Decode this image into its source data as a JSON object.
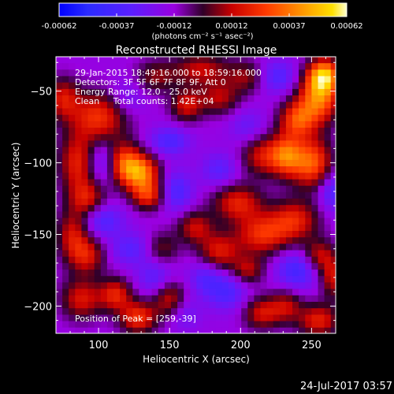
{
  "chart_data": {
    "type": "heatmap",
    "title": "Reconstructed RHESSI Image",
    "xlabel": "Heliocentric X (arcsec)",
    "ylabel": "Heliocentric Y (arcsec)",
    "xlim": [
      70,
      267
    ],
    "ylim": [
      -219,
      -26
    ],
    "xticks": [
      100,
      150,
      200,
      250
    ],
    "yticks": [
      -50,
      -100,
      -150,
      -200
    ],
    "colorbar": {
      "min": -0.00062,
      "max": 0.00062,
      "ticks": [
        "-0.00062",
        "-0.00037",
        "-0.00012",
        "0.00012",
        "0.00037",
        "0.00062"
      ],
      "unit_label": "(photons cm⁻² s⁻¹ asec⁻²)"
    },
    "annotations": [
      "29-Jan-2015 18:49:16.000 to 18:59:16.000",
      "Detectors: 3F 5F 6F 7F 8F 9F, Att 0",
      "Energy Range: 12.0 - 25.0 keV",
      "Clean     Total counts: 1.42E+04",
      "Position of Peak = [259,-39]"
    ],
    "peak": {
      "x": 259,
      "y": -39
    },
    "sources": [
      {
        "x": 130,
        "y": -107,
        "value": 0.00055,
        "sx": 9,
        "sy": 9
      },
      {
        "x": 118,
        "y": -100,
        "value": 0.0004,
        "sx": 8,
        "sy": 10
      },
      {
        "x": 135,
        "y": -123,
        "value": 0.00035,
        "sx": 8,
        "sy": 7
      },
      {
        "x": 100,
        "y": -68,
        "value": 0.0004,
        "sx": 14,
        "sy": 12
      },
      {
        "x": 85,
        "y": -100,
        "value": 0.00035,
        "sx": 9,
        "sy": 14
      },
      {
        "x": 92,
        "y": -125,
        "value": 0.0003,
        "sx": 9,
        "sy": 9
      },
      {
        "x": 75,
        "y": -55,
        "value": 0.0003,
        "sx": 8,
        "sy": 10
      },
      {
        "x": 82,
        "y": -150,
        "value": 0.0003,
        "sx": 8,
        "sy": 12
      },
      {
        "x": 92,
        "y": -165,
        "value": 0.0003,
        "sx": 9,
        "sy": 9
      },
      {
        "x": 88,
        "y": -195,
        "value": 0.00032,
        "sx": 10,
        "sy": 10
      },
      {
        "x": 128,
        "y": -208,
        "value": 0.0004,
        "sx": 9,
        "sy": 8
      },
      {
        "x": 112,
        "y": -192,
        "value": 0.00035,
        "sx": 8,
        "sy": 8
      },
      {
        "x": 150,
        "y": -195,
        "value": 0.0003,
        "sx": 8,
        "sy": 9
      },
      {
        "x": 168,
        "y": -145,
        "value": 0.00028,
        "sx": 9,
        "sy": 8
      },
      {
        "x": 185,
        "y": -162,
        "value": 0.00032,
        "sx": 10,
        "sy": 9
      },
      {
        "x": 198,
        "y": -128,
        "value": 0.00035,
        "sx": 12,
        "sy": 9
      },
      {
        "x": 215,
        "y": -150,
        "value": 0.00038,
        "sx": 13,
        "sy": 10
      },
      {
        "x": 238,
        "y": -140,
        "value": 0.00035,
        "sx": 12,
        "sy": 10
      },
      {
        "x": 215,
        "y": -95,
        "value": 0.0003,
        "sx": 10,
        "sy": 10
      },
      {
        "x": 232,
        "y": -95,
        "value": 0.00045,
        "sx": 8,
        "sy": 10
      },
      {
        "x": 250,
        "y": -100,
        "value": 0.0005,
        "sx": 10,
        "sy": 12
      },
      {
        "x": 255,
        "y": -55,
        "value": 0.00055,
        "sx": 10,
        "sy": 12
      },
      {
        "x": 259,
        "y": -39,
        "value": 0.00062,
        "sx": 8,
        "sy": 8
      },
      {
        "x": 240,
        "y": -70,
        "value": 0.00042,
        "sx": 9,
        "sy": 9
      },
      {
        "x": 162,
        "y": -60,
        "value": 0.0003,
        "sx": 8,
        "sy": 8
      },
      {
        "x": 185,
        "y": -55,
        "value": 0.00025,
        "sx": 10,
        "sy": 8
      },
      {
        "x": 172,
        "y": -35,
        "value": 0.00028,
        "sx": 14,
        "sy": 8
      },
      {
        "x": 215,
        "y": -205,
        "value": 0.0003,
        "sx": 9,
        "sy": 8
      },
      {
        "x": 255,
        "y": -210,
        "value": 0.00035,
        "sx": 10,
        "sy": 8
      },
      {
        "x": 232,
        "y": -200,
        "value": 0.00025,
        "sx": 8,
        "sy": 8
      },
      {
        "x": 265,
        "y": -180,
        "value": 0.0003,
        "sx": 6,
        "sy": 10
      },
      {
        "x": 205,
        "y": -175,
        "value": 0.00025,
        "sx": 8,
        "sy": 7
      },
      {
        "x": 145,
        "y": -160,
        "value": 0.00018,
        "sx": 8,
        "sy": 8
      },
      {
        "x": 140,
        "y": -40,
        "value": 0.0002,
        "sx": 10,
        "sy": 8
      },
      {
        "x": 205,
        "y": -40,
        "value": 0.00022,
        "sx": 10,
        "sy": 8
      },
      {
        "x": 255,
        "y": -165,
        "value": 0.00028,
        "sx": 8,
        "sy": 8
      }
    ],
    "lows": [
      {
        "x": 103,
        "y": -140,
        "value": -0.0003,
        "sx": 10,
        "sy": 8
      },
      {
        "x": 102,
        "y": -100,
        "value": -0.00025,
        "sx": 7,
        "sy": 10
      },
      {
        "x": 122,
        "y": -160,
        "value": -0.00025,
        "sx": 10,
        "sy": 8
      },
      {
        "x": 155,
        "y": -120,
        "value": -0.0003,
        "sx": 8,
        "sy": 10
      },
      {
        "x": 150,
        "y": -85,
        "value": -0.0003,
        "sx": 10,
        "sy": 7
      },
      {
        "x": 185,
        "y": -105,
        "value": -0.00025,
        "sx": 9,
        "sy": 8
      },
      {
        "x": 225,
        "y": -40,
        "value": -0.0003,
        "sx": 10,
        "sy": 8
      },
      {
        "x": 265,
        "y": -120,
        "value": -0.0003,
        "sx": 7,
        "sy": 10
      },
      {
        "x": 240,
        "y": -175,
        "value": -0.00035,
        "sx": 10,
        "sy": 9
      },
      {
        "x": 190,
        "y": -190,
        "value": -0.0003,
        "sx": 10,
        "sy": 9
      },
      {
        "x": 175,
        "y": -180,
        "value": -0.00025,
        "sx": 8,
        "sy": 8
      },
      {
        "x": 140,
        "y": -180,
        "value": -0.00025,
        "sx": 9,
        "sy": 9
      },
      {
        "x": 120,
        "y": -55,
        "value": -0.0002,
        "sx": 9,
        "sy": 9
      },
      {
        "x": 205,
        "y": -75,
        "value": -0.0002,
        "sx": 9,
        "sy": 9
      },
      {
        "x": 160,
        "y": -205,
        "value": -0.0002,
        "sx": 8,
        "sy": 8
      }
    ]
  },
  "footer": {
    "date": "24-Jul-2017 03:57"
  }
}
